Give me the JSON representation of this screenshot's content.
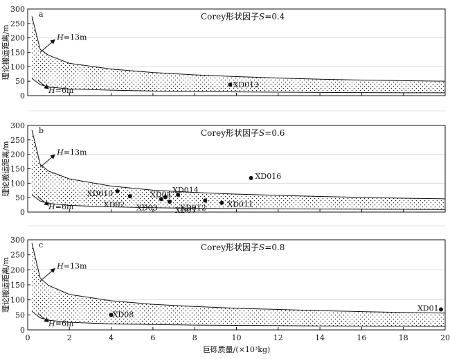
{
  "chart_data": [
    {
      "type": "scatter",
      "panel": "a",
      "title": "Corey形状因子S=0.4",
      "title_prefix": "Corey形状因子",
      "title_var": "S",
      "title_value": "=0.4",
      "ylabel": "理论搬运距离/m",
      "ylim": [
        0,
        300
      ],
      "yticks": [
        "0",
        "50",
        "100",
        "150",
        "200",
        "250",
        "300"
      ],
      "xlim": [
        0,
        20
      ],
      "upper_curve": {
        "label_var": "H",
        "label_rest": "=13m",
        "values": [
          [
            0.2,
            275
          ],
          [
            0.6,
            160
          ],
          [
            1,
            140
          ],
          [
            2,
            112
          ],
          [
            4,
            92
          ],
          [
            6,
            80
          ],
          [
            8,
            72
          ],
          [
            10,
            66
          ],
          [
            12,
            61
          ],
          [
            14,
            57
          ],
          [
            16,
            54
          ],
          [
            18,
            52
          ],
          [
            20,
            50
          ]
        ]
      },
      "lower_curve": {
        "label_var": "H",
        "label_rest": "=6m",
        "values": [
          [
            0.2,
            60
          ],
          [
            0.6,
            38
          ],
          [
            1,
            30
          ],
          [
            2,
            23
          ],
          [
            4,
            19
          ],
          [
            6,
            16
          ],
          [
            8,
            14
          ],
          [
            10,
            13
          ],
          [
            12,
            12
          ],
          [
            14,
            11
          ],
          [
            16,
            10.5
          ],
          [
            18,
            10
          ],
          [
            20,
            10
          ]
        ]
      },
      "points": [
        {
          "label": "XD013",
          "x": 9.7,
          "y": 38
        }
      ]
    },
    {
      "type": "scatter",
      "panel": "b",
      "title": "Corey形状因子S=0.6",
      "title_prefix": "Corey形状因子",
      "title_var": "S",
      "title_value": "=0.6",
      "ylabel": "理论搬运距离/m",
      "ylim": [
        0,
        300
      ],
      "yticks": [
        "0",
        "50",
        "100",
        "150",
        "200",
        "250",
        "300"
      ],
      "xlim": [
        0,
        20
      ],
      "upper_curve": {
        "label_var": "H",
        "label_rest": "=13m",
        "values": [
          [
            0.2,
            285
          ],
          [
            0.6,
            165
          ],
          [
            1,
            142
          ],
          [
            2,
            115
          ],
          [
            4,
            90
          ],
          [
            6,
            76
          ],
          [
            8,
            68
          ],
          [
            10,
            62
          ],
          [
            12,
            58
          ],
          [
            14,
            54
          ],
          [
            16,
            51
          ],
          [
            18,
            48
          ],
          [
            20,
            46
          ]
        ]
      },
      "lower_curve": {
        "label_var": "H",
        "label_rest": "=6m",
        "values": [
          [
            0.2,
            60
          ],
          [
            0.6,
            38
          ],
          [
            1,
            30
          ],
          [
            2,
            23
          ],
          [
            4,
            18
          ],
          [
            6,
            15
          ],
          [
            8,
            13
          ],
          [
            10,
            12
          ],
          [
            12,
            11
          ],
          [
            14,
            10.5
          ],
          [
            16,
            10
          ],
          [
            18,
            9.5
          ],
          [
            20,
            9
          ]
        ]
      },
      "points": [
        {
          "label": "XD016",
          "x": 10.7,
          "y": 118
        },
        {
          "label": "XD010",
          "x": 4.3,
          "y": 72
        },
        {
          "label": "XD014",
          "x": 7.2,
          "y": 60
        },
        {
          "label": "XD04",
          "x": 6.6,
          "y": 52
        },
        {
          "label": "XD02",
          "x": 4.9,
          "y": 55
        },
        {
          "label": "XD03",
          "x": 6.4,
          "y": 45
        },
        {
          "label": "XD07",
          "x": 6.8,
          "y": 36
        },
        {
          "label": "XD012",
          "x": 8.5,
          "y": 40
        },
        {
          "label": "XD011",
          "x": 9.3,
          "y": 32
        }
      ]
    },
    {
      "type": "scatter",
      "panel": "c",
      "title": "Corey形状因子S=0.8",
      "title_prefix": "Corey形状因子",
      "title_var": "S",
      "title_value": "=0.8",
      "ylabel": "理论搬运距离/m",
      "ylim": [
        0,
        300
      ],
      "yticks": [
        "0",
        "50",
        "100",
        "150",
        "200",
        "250",
        "300"
      ],
      "xlim": [
        0,
        20
      ],
      "xticks": [
        "0",
        "2",
        "4",
        "6",
        "8",
        "10",
        "12",
        "14",
        "16",
        "18",
        "20"
      ],
      "xlabel": "巨砾质量/(×10³kg)",
      "upper_curve": {
        "label_var": "H",
        "label_rest": "=13m",
        "values": [
          [
            0.2,
            290
          ],
          [
            0.6,
            172
          ],
          [
            1,
            148
          ],
          [
            2,
            118
          ],
          [
            4,
            97
          ],
          [
            6,
            85
          ],
          [
            8,
            78
          ],
          [
            10,
            72
          ],
          [
            12,
            68
          ],
          [
            14,
            64
          ],
          [
            16,
            61
          ],
          [
            18,
            58
          ],
          [
            20,
            56
          ]
        ]
      },
      "lower_curve": {
        "label_var": "H",
        "label_rest": "=6m",
        "values": [
          [
            0.2,
            62
          ],
          [
            0.6,
            40
          ],
          [
            1,
            32
          ],
          [
            2,
            25
          ],
          [
            4,
            20
          ],
          [
            6,
            18
          ],
          [
            8,
            16
          ],
          [
            10,
            15
          ],
          [
            12,
            14
          ],
          [
            14,
            13
          ],
          [
            16,
            12.5
          ],
          [
            18,
            12
          ],
          [
            20,
            11.5
          ]
        ]
      },
      "points": [
        {
          "label": "XD01",
          "x": 19.8,
          "y": 68
        },
        {
          "label": "XD08",
          "x": 4.0,
          "y": 50
        }
      ]
    }
  ]
}
